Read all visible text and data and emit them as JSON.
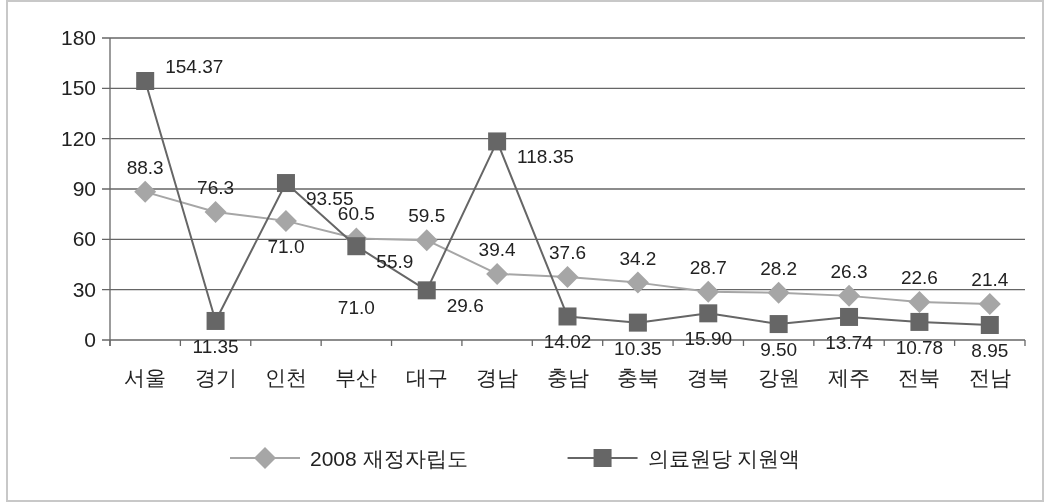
{
  "chart_data": {
    "type": "line",
    "categories": [
      "서울",
      "경기",
      "인천",
      "부산",
      "대구",
      "경남",
      "충남",
      "충북",
      "경북",
      "강원",
      "제주",
      "전북",
      "전남"
    ],
    "ylim": [
      0,
      180
    ],
    "yticks": [
      0,
      30,
      60,
      90,
      120,
      150,
      180
    ],
    "grid": "y",
    "legend": "bottom",
    "data_labels": true,
    "series": [
      {
        "name": "2008 재정자립도",
        "color": "#a6a6a6",
        "marker": "diamond",
        "values": [
          88.3,
          76.3,
          71.0,
          60.5,
          59.5,
          39.4,
          37.6,
          34.2,
          28.7,
          28.2,
          26.3,
          22.6,
          21.4
        ],
        "value_labels": [
          "88.3",
          "76.3",
          "71.0",
          "60.5",
          "59.5",
          "39.4",
          "37.6",
          "34.2",
          "28.7",
          "28.2",
          "26.3",
          "22.6",
          "21.4"
        ]
      },
      {
        "name": "의료원당 지원액",
        "color": "#666666",
        "marker": "square",
        "values": [
          154.37,
          11.35,
          93.55,
          55.9,
          29.6,
          118.35,
          14.02,
          10.35,
          15.9,
          9.5,
          13.74,
          10.78,
          8.95
        ],
        "value_labels": [
          "154.37",
          "11.35",
          "93.55",
          "55.9",
          "29.6",
          "118.35",
          "14.02",
          "10.35",
          "15.90",
          "9.50",
          "13.74",
          "10.78",
          "8.95"
        ]
      }
    ],
    "annotations": [
      "71.0"
    ]
  }
}
